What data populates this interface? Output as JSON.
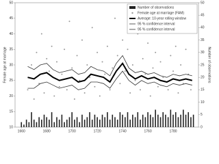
{
  "chart_data": {
    "type": "combo",
    "y_label": "Female age at marriage",
    "y2_label": "Number of observations",
    "xlim": [
      1655,
      1800
    ],
    "xticks": [
      1660,
      1680,
      1700,
      1720,
      1740,
      1760,
      1780
    ],
    "ylim": [
      10,
      50
    ],
    "yticks": [
      10,
      15,
      20,
      25,
      30,
      35,
      40,
      45,
      50
    ],
    "y2lim": [
      0,
      50
    ],
    "y2ticks": [
      0,
      5,
      10,
      15,
      20,
      25,
      30,
      35,
      40,
      45,
      50
    ],
    "legend": "upper right",
    "series": [
      {
        "name": "Number of observations",
        "type": "bar",
        "axis": "y2",
        "color": "#222222",
        "x": [
          1660,
          1662,
          1664,
          1666,
          1668,
          1670,
          1672,
          1674,
          1676,
          1678,
          1680,
          1682,
          1684,
          1686,
          1688,
          1690,
          1692,
          1694,
          1696,
          1698,
          1700,
          1702,
          1704,
          1706,
          1708,
          1710,
          1712,
          1714,
          1716,
          1718,
          1720,
          1722,
          1724,
          1726,
          1728,
          1730,
          1732,
          1734,
          1736,
          1738,
          1740,
          1742,
          1744,
          1746,
          1748,
          1750,
          1752,
          1754,
          1756,
          1758,
          1760,
          1762,
          1764,
          1766,
          1768,
          1770,
          1772,
          1774,
          1776,
          1778,
          1780,
          1782,
          1784,
          1786,
          1788,
          1790,
          1792,
          1794,
          1796
        ],
        "values": [
          2,
          1,
          3,
          2,
          6,
          3,
          2,
          4,
          3,
          5,
          4,
          3,
          6,
          2,
          4,
          3,
          5,
          2,
          3,
          4,
          6,
          3,
          4,
          2,
          5,
          3,
          4,
          6,
          3,
          5,
          4,
          3,
          5,
          4,
          6,
          3,
          5,
          4,
          3,
          6,
          5,
          4,
          6,
          3,
          5,
          4,
          6,
          3,
          5,
          4,
          6,
          5,
          4,
          7,
          5,
          4,
          6,
          5,
          4,
          7,
          5,
          6,
          4,
          5,
          7,
          5,
          6,
          4,
          5
        ]
      },
      {
        "name": "Female age at marriage (FAM)",
        "type": "scatter",
        "color": "#999999",
        "x": [
          1665,
          1668,
          1670,
          1672,
          1674,
          1676,
          1678,
          1680,
          1682,
          1684,
          1686,
          1688,
          1690,
          1692,
          1694,
          1696,
          1698,
          1700,
          1702,
          1704,
          1706,
          1708,
          1710,
          1712,
          1714,
          1716,
          1718,
          1720,
          1722,
          1724,
          1726,
          1728,
          1730,
          1732,
          1734,
          1736,
          1738,
          1740,
          1742,
          1744,
          1746,
          1748,
          1750,
          1752,
          1754,
          1756,
          1758,
          1760,
          1762,
          1764,
          1766,
          1768,
          1770,
          1772,
          1774,
          1776,
          1778,
          1780,
          1782,
          1784,
          1786,
          1788,
          1790,
          1792,
          1794
        ],
        "values": [
          22,
          30,
          19,
          34,
          24,
          40,
          21,
          32,
          28,
          36,
          20,
          31,
          23,
          27,
          35,
          22,
          44,
          29,
          19,
          33,
          25,
          38,
          21,
          30,
          26,
          42,
          23,
          34,
          20,
          31,
          27,
          36,
          22,
          29,
          45,
          33,
          24,
          38,
          28,
          35,
          21,
          30,
          25,
          40,
          22,
          32,
          27,
          37,
          20,
          29,
          34,
          23,
          31,
          26,
          41,
          22,
          33,
          28,
          36,
          21,
          30,
          24,
          35,
          27,
          22
        ]
      },
      {
        "name": "Average: 10-year rolling window",
        "type": "line",
        "color": "#000000",
        "width": 2,
        "x": [
          1665,
          1670,
          1675,
          1680,
          1685,
          1690,
          1695,
          1700,
          1705,
          1710,
          1715,
          1720,
          1725,
          1730,
          1735,
          1740,
          1745,
          1750,
          1755,
          1760,
          1765,
          1770,
          1775,
          1780,
          1785,
          1790,
          1795
        ],
        "values": [
          26,
          25.5,
          27,
          27.5,
          26,
          25,
          25.5,
          26,
          24.5,
          25,
          27,
          26.5,
          26,
          24.5,
          28,
          30.5,
          27,
          25.5,
          26.5,
          25.5,
          26,
          25,
          24.5,
          25.5,
          25,
          25.5,
          25
        ]
      },
      {
        "name": "95 % confidence interval",
        "type": "line",
        "color": "#333333",
        "width": 0.8,
        "x": [
          1665,
          1670,
          1675,
          1680,
          1685,
          1690,
          1695,
          1700,
          1705,
          1710,
          1715,
          1720,
          1725,
          1730,
          1735,
          1740,
          1745,
          1750,
          1755,
          1760,
          1765,
          1770,
          1775,
          1780,
          1785,
          1790,
          1795
        ],
        "values": [
          29.5,
          28.5,
          30,
          30.5,
          28.5,
          27.5,
          28,
          28.5,
          27,
          27.5,
          29.5,
          28.5,
          28,
          26.5,
          30.5,
          33,
          29,
          27.5,
          28,
          27,
          27.5,
          26.5,
          26,
          27,
          26.5,
          27,
          26.5
        ]
      },
      {
        "name": "95 % confidence interval",
        "type": "line",
        "color": "#333333",
        "width": 0.8,
        "x": [
          1665,
          1670,
          1675,
          1680,
          1685,
          1690,
          1695,
          1700,
          1705,
          1710,
          1715,
          1720,
          1725,
          1730,
          1735,
          1740,
          1745,
          1750,
          1755,
          1760,
          1765,
          1770,
          1775,
          1780,
          1785,
          1790,
          1795
        ],
        "values": [
          22.5,
          22.5,
          24,
          24.5,
          23.5,
          22.5,
          23,
          23.5,
          22,
          22.5,
          24.5,
          24.5,
          24,
          22.5,
          25.5,
          28,
          25,
          23.5,
          25,
          24,
          24.5,
          23.5,
          23,
          24,
          23.5,
          24,
          23.5
        ]
      }
    ]
  }
}
